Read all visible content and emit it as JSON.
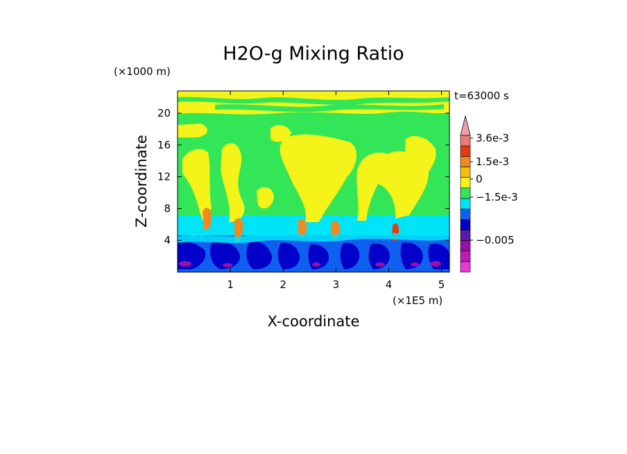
{
  "chart_data": {
    "type": "heatmap",
    "title": "H2O-g Mixing Ratio",
    "xlabel": "X-coordinate",
    "ylabel": "Z-coordinate",
    "x_units": "(×1E5 m)",
    "y_units": "(×1000 m)",
    "time_label": "t=63000 s",
    "xlim": [
      0,
      5.15
    ],
    "ylim": [
      0,
      22.8
    ],
    "x_ticks": [
      1,
      2,
      3,
      4,
      5
    ],
    "x_tick_labels": [
      "1",
      "2",
      "3",
      "4",
      "5"
    ],
    "y_ticks": [
      4,
      8,
      12,
      16,
      20
    ],
    "y_tick_labels": [
      "4",
      "8",
      "12",
      "16",
      "20"
    ],
    "colorbar": {
      "levels": [
        {
          "color": "#e83ad0"
        },
        {
          "color": "#c21ab5"
        },
        {
          "color": "#9a10a8"
        },
        {
          "color": "#5a1aa8"
        },
        {
          "color": "#0000c8"
        },
        {
          "color": "#1060f0"
        },
        {
          "color": "#00e4f8"
        },
        {
          "color": "#33e657"
        },
        {
          "color": "#f4f41a"
        },
        {
          "color": "#f4c010"
        },
        {
          "color": "#f08a20"
        },
        {
          "color": "#e83a10"
        },
        {
          "color": "#e87a78"
        },
        {
          "color": "#f0a0a8"
        }
      ],
      "labels": [
        "3.6e-3",
        "1.5e-3",
        "0",
        "−1.5e-3",
        "−0.005"
      ]
    },
    "layers": [
      {
        "z_from": 0.0,
        "z_to": 0.9,
        "dominant": "#0000c8"
      },
      {
        "z_from": 0.9,
        "z_to": 4.6,
        "dominant": "#1060f0"
      },
      {
        "z_from": 4.6,
        "z_to": 6.6,
        "dominant": "#00e4f8"
      },
      {
        "z_from": 6.6,
        "z_to": 19.0,
        "dominant": "#33e657"
      },
      {
        "z_from": 19.0,
        "z_to": 22.8,
        "dominant": "#f4f41a"
      }
    ]
  }
}
